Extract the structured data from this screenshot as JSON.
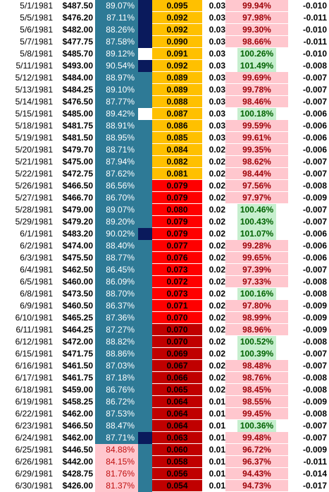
{
  "colors": {
    "pct_band": "#2e7a96",
    "pct_low_band": "#ffc7ce",
    "marker_navy": "#0a1a5c",
    "ratio_gold": "#ffc000",
    "ratio_red": "#ff0000",
    "ratio_darkred": "#c00000",
    "pct2_red_bg": "#ffc7ce",
    "pct2_green_bg": "#c6efce"
  },
  "rows": [
    {
      "date": "5/1/1981",
      "price": "$487.50",
      "pct": "89.07%",
      "pct_low": false,
      "mark": "navy",
      "ratio": "0.095",
      "ratio_color": "#ffc000",
      "small": "0.03",
      "pct2": "99.94%",
      "pct2_good": false,
      "last": "-0.010"
    },
    {
      "date": "5/5/1981",
      "price": "$476.20",
      "pct": "87.11%",
      "pct_low": false,
      "mark": "navy",
      "ratio": "0.092",
      "ratio_color": "#ffc000",
      "small": "0.03",
      "pct2": "97.98%",
      "pct2_good": false,
      "last": "-0.011"
    },
    {
      "date": "5/6/1981",
      "price": "$482.00",
      "pct": "88.26%",
      "pct_low": false,
      "mark": "navy",
      "ratio": "0.092",
      "ratio_color": "#ffc000",
      "small": "0.03",
      "pct2": "99.30%",
      "pct2_good": false,
      "last": "-0.010"
    },
    {
      "date": "5/7/1981",
      "price": "$477.75",
      "pct": "87.58%",
      "pct_low": false,
      "mark": "navy",
      "ratio": "0.090",
      "ratio_color": "#ffc000",
      "small": "0.03",
      "pct2": "98.66%",
      "pct2_good": false,
      "last": "-0.011"
    },
    {
      "date": "5/8/1981",
      "price": "$485.70",
      "pct": "89.12%",
      "pct_low": false,
      "mark": "white",
      "ratio": "0.091",
      "ratio_color": "#ffc000",
      "small": "0.03",
      "pct2": "100.26%",
      "pct2_good": true,
      "last": "-0.010"
    },
    {
      "date": "5/11/1981",
      "price": "$493.00",
      "pct": "90.54%",
      "pct_low": false,
      "mark": "navy",
      "ratio": "0.092",
      "ratio_color": "#ffc000",
      "small": "0.03",
      "pct2": "101.49%",
      "pct2_good": true,
      "last": "-0.008"
    },
    {
      "date": "5/12/1981",
      "price": "$484.00",
      "pct": "88.97%",
      "pct_low": false,
      "mark": "none",
      "ratio": "0.089",
      "ratio_color": "#ffc000",
      "small": "0.03",
      "pct2": "99.69%",
      "pct2_good": false,
      "last": "-0.007"
    },
    {
      "date": "5/13/1981",
      "price": "$484.25",
      "pct": "89.10%",
      "pct_low": false,
      "mark": "none",
      "ratio": "0.089",
      "ratio_color": "#ffc000",
      "small": "0.03",
      "pct2": "99.78%",
      "pct2_good": false,
      "last": "-0.007"
    },
    {
      "date": "5/14/1981",
      "price": "$476.50",
      "pct": "87.77%",
      "pct_low": false,
      "mark": "none",
      "ratio": "0.088",
      "ratio_color": "#ffc000",
      "small": "0.03",
      "pct2": "98.46%",
      "pct2_good": false,
      "last": "-0.007"
    },
    {
      "date": "5/15/1981",
      "price": "$485.00",
      "pct": "89.42%",
      "pct_low": false,
      "mark": "white",
      "ratio": "0.087",
      "ratio_color": "#ffc000",
      "small": "0.03",
      "pct2": "100.18%",
      "pct2_good": true,
      "last": "-0.006"
    },
    {
      "date": "5/18/1981",
      "price": "$481.75",
      "pct": "88.91%",
      "pct_low": false,
      "mark": "none",
      "ratio": "0.086",
      "ratio_color": "#ffc000",
      "small": "0.03",
      "pct2": "99.59%",
      "pct2_good": false,
      "last": "-0.006"
    },
    {
      "date": "5/19/1981",
      "price": "$481.50",
      "pct": "88.95%",
      "pct_low": false,
      "mark": "none",
      "ratio": "0.085",
      "ratio_color": "#ffc000",
      "small": "0.03",
      "pct2": "99.61%",
      "pct2_good": false,
      "last": "-0.006"
    },
    {
      "date": "5/20/1981",
      "price": "$479.70",
      "pct": "88.71%",
      "pct_low": false,
      "mark": "none",
      "ratio": "0.084",
      "ratio_color": "#ffc000",
      "small": "0.02",
      "pct2": "99.35%",
      "pct2_good": false,
      "last": "-0.006"
    },
    {
      "date": "5/21/1981",
      "price": "$475.00",
      "pct": "87.94%",
      "pct_low": false,
      "mark": "none",
      "ratio": "0.082",
      "ratio_color": "#ffc000",
      "small": "0.02",
      "pct2": "98.62%",
      "pct2_good": false,
      "last": "-0.007"
    },
    {
      "date": "5/22/1981",
      "price": "$472.75",
      "pct": "87.62%",
      "pct_low": false,
      "mark": "none",
      "ratio": "0.081",
      "ratio_color": "#ffc000",
      "small": "0.02",
      "pct2": "98.44%",
      "pct2_good": false,
      "last": "-0.007"
    },
    {
      "date": "5/26/1981",
      "price": "$466.50",
      "pct": "86.56%",
      "pct_low": false,
      "mark": "none",
      "ratio": "0.079",
      "ratio_color": "#ff0000",
      "small": "0.02",
      "pct2": "97.56%",
      "pct2_good": false,
      "last": "-0.008"
    },
    {
      "date": "5/27/1981",
      "price": "$466.70",
      "pct": "86.70%",
      "pct_low": false,
      "mark": "none",
      "ratio": "0.079",
      "ratio_color": "#ff0000",
      "small": "0.02",
      "pct2": "97.97%",
      "pct2_good": false,
      "last": "-0.009"
    },
    {
      "date": "5/28/1981",
      "price": "$479.00",
      "pct": "89.07%",
      "pct_low": false,
      "mark": "none",
      "ratio": "0.080",
      "ratio_color": "#ff0000",
      "small": "0.02",
      "pct2": "100.46%",
      "pct2_good": true,
      "last": "-0.007"
    },
    {
      "date": "5/29/1981",
      "price": "$479.20",
      "pct": "89.20%",
      "pct_low": false,
      "mark": "none",
      "ratio": "0.079",
      "ratio_color": "#ff0000",
      "small": "0.02",
      "pct2": "100.43%",
      "pct2_good": true,
      "last": "-0.007"
    },
    {
      "date": "6/1/1981",
      "price": "$483.20",
      "pct": "90.02%",
      "pct_low": false,
      "mark": "navy",
      "ratio": "0.079",
      "ratio_color": "#ff0000",
      "small": "0.02",
      "pct2": "101.07%",
      "pct2_good": true,
      "last": "-0.006"
    },
    {
      "date": "6/2/1981",
      "price": "$474.00",
      "pct": "88.40%",
      "pct_low": false,
      "mark": "none",
      "ratio": "0.077",
      "ratio_color": "#ff0000",
      "small": "0.02",
      "pct2": "99.28%",
      "pct2_good": false,
      "last": "-0.006"
    },
    {
      "date": "6/3/1981",
      "price": "$475.50",
      "pct": "88.77%",
      "pct_low": false,
      "mark": "none",
      "ratio": "0.076",
      "ratio_color": "#ff0000",
      "small": "0.02",
      "pct2": "99.65%",
      "pct2_good": false,
      "last": "-0.006"
    },
    {
      "date": "6/4/1981",
      "price": "$462.50",
      "pct": "86.45%",
      "pct_low": false,
      "mark": "none",
      "ratio": "0.073",
      "ratio_color": "#ff0000",
      "small": "0.02",
      "pct2": "97.39%",
      "pct2_good": false,
      "last": "-0.007"
    },
    {
      "date": "6/5/1981",
      "price": "$460.00",
      "pct": "86.09%",
      "pct_low": false,
      "mark": "none",
      "ratio": "0.072",
      "ratio_color": "#ff0000",
      "small": "0.02",
      "pct2": "97.33%",
      "pct2_good": false,
      "last": "-0.008"
    },
    {
      "date": "6/8/1981",
      "price": "$473.50",
      "pct": "88.70%",
      "pct_low": false,
      "mark": "none",
      "ratio": "0.073",
      "ratio_color": "#ff0000",
      "small": "0.02",
      "pct2": "100.16%",
      "pct2_good": true,
      "last": "-0.008"
    },
    {
      "date": "6/9/1981",
      "price": "$460.50",
      "pct": "86.37%",
      "pct_low": false,
      "mark": "none",
      "ratio": "0.071",
      "ratio_color": "#ff0000",
      "small": "0.02",
      "pct2": "97.80%",
      "pct2_good": false,
      "last": "-0.009"
    },
    {
      "date": "6/10/1981",
      "price": "$465.25",
      "pct": "87.36%",
      "pct_low": false,
      "mark": "none",
      "ratio": "0.070",
      "ratio_color": "#ff0000",
      "small": "0.02",
      "pct2": "98.99%",
      "pct2_good": false,
      "last": "-0.009"
    },
    {
      "date": "6/11/1981",
      "price": "$464.25",
      "pct": "87.27%",
      "pct_low": false,
      "mark": "none",
      "ratio": "0.070",
      "ratio_color": "#c00000",
      "small": "0.02",
      "pct2": "98.96%",
      "pct2_good": false,
      "last": "-0.009"
    },
    {
      "date": "6/12/1981",
      "price": "$472.00",
      "pct": "88.82%",
      "pct_low": false,
      "mark": "none",
      "ratio": "0.070",
      "ratio_color": "#c00000",
      "small": "0.02",
      "pct2": "100.52%",
      "pct2_good": true,
      "last": "-0.008"
    },
    {
      "date": "6/15/1981",
      "price": "$471.75",
      "pct": "88.86%",
      "pct_low": false,
      "mark": "none",
      "ratio": "0.069",
      "ratio_color": "#c00000",
      "small": "0.02",
      "pct2": "100.39%",
      "pct2_good": true,
      "last": "-0.007"
    },
    {
      "date": "6/16/1981",
      "price": "$461.50",
      "pct": "87.03%",
      "pct_low": false,
      "mark": "none",
      "ratio": "0.067",
      "ratio_color": "#c00000",
      "small": "0.02",
      "pct2": "98.48%",
      "pct2_good": false,
      "last": "-0.007"
    },
    {
      "date": "6/17/1981",
      "price": "$461.75",
      "pct": "87.18%",
      "pct_low": false,
      "mark": "none",
      "ratio": "0.066",
      "ratio_color": "#c00000",
      "small": "0.02",
      "pct2": "98.76%",
      "pct2_good": false,
      "last": "-0.008"
    },
    {
      "date": "6/18/1981",
      "price": "$459.00",
      "pct": "86.76%",
      "pct_low": false,
      "mark": "none",
      "ratio": "0.065",
      "ratio_color": "#c00000",
      "small": "0.02",
      "pct2": "98.45%",
      "pct2_good": false,
      "last": "-0.008"
    },
    {
      "date": "6/19/1981",
      "price": "$458.25",
      "pct": "86.72%",
      "pct_low": false,
      "mark": "none",
      "ratio": "0.064",
      "ratio_color": "#c00000",
      "small": "0.01",
      "pct2": "98.55%",
      "pct2_good": false,
      "last": "-0.009"
    },
    {
      "date": "6/22/1981",
      "price": "$462.00",
      "pct": "87.53%",
      "pct_low": false,
      "mark": "none",
      "ratio": "0.064",
      "ratio_color": "#c00000",
      "small": "0.01",
      "pct2": "99.45%",
      "pct2_good": false,
      "last": "-0.008"
    },
    {
      "date": "6/23/1981",
      "price": "$466.50",
      "pct": "88.47%",
      "pct_low": false,
      "mark": "none",
      "ratio": "0.064",
      "ratio_color": "#c00000",
      "small": "0.01",
      "pct2": "100.36%",
      "pct2_good": true,
      "last": "-0.007"
    },
    {
      "date": "6/24/1981",
      "price": "$462.00",
      "pct": "87.71%",
      "pct_low": false,
      "mark": "navy",
      "ratio": "0.063",
      "ratio_color": "#c00000",
      "small": "0.01",
      "pct2": "99.48%",
      "pct2_good": false,
      "last": "-0.007"
    },
    {
      "date": "6/25/1981",
      "price": "$446.50",
      "pct": "84.88%",
      "pct_low": true,
      "mark": "none",
      "ratio": "0.060",
      "ratio_color": "#c00000",
      "small": "0.01",
      "pct2": "96.72%",
      "pct2_good": false,
      "last": "-0.009"
    },
    {
      "date": "6/26/1981",
      "price": "$442.00",
      "pct": "84.15%",
      "pct_low": true,
      "mark": "none",
      "ratio": "0.058",
      "ratio_color": "#c00000",
      "small": "0.01",
      "pct2": "96.37%",
      "pct2_good": false,
      "last": "-0.011"
    },
    {
      "date": "6/29/1981",
      "price": "$428.75",
      "pct": "81.76%",
      "pct_low": true,
      "mark": "none",
      "ratio": "0.056",
      "ratio_color": "#c00000",
      "small": "0.01",
      "pct2": "94.43%",
      "pct2_good": false,
      "last": "-0.014"
    },
    {
      "date": "6/30/1981",
      "price": "$426.00",
      "pct": "81.37%",
      "pct_low": true,
      "mark": "none",
      "ratio": "0.054",
      "ratio_color": "#c00000",
      "small": "0.01",
      "pct2": "94.73%",
      "pct2_good": false,
      "last": "-0.017"
    }
  ]
}
